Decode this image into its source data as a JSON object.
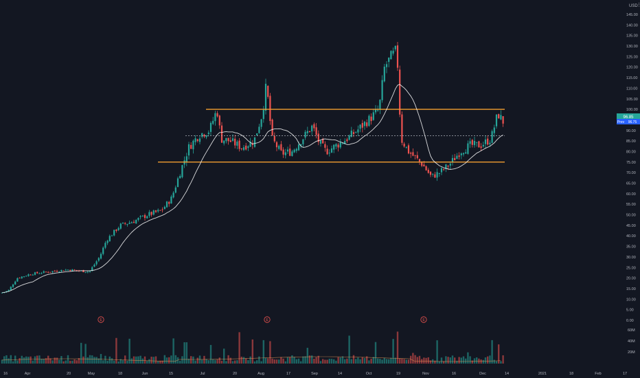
{
  "currency": "USD",
  "price_badges": {
    "current": "96.85",
    "prev_label": "Prev",
    "prev_value": "96.75"
  },
  "colors": {
    "background": "#131722",
    "up": "#26a69a",
    "down": "#ef5350",
    "axis_text": "#b2b5be",
    "level_line": "#f59f30",
    "ma_line": "#ffffff",
    "badge_blue": "#2962ff",
    "earnings_marker": "#ef5350"
  },
  "chart_data": {
    "type": "candlestick",
    "y_ticks": [
      "145.00",
      "140.00",
      "135.00",
      "130.00",
      "125.00",
      "120.00",
      "115.00",
      "110.00",
      "105.00",
      "100.00",
      "95.00",
      "90.00",
      "85.00",
      "80.00",
      "75.00",
      "70.00",
      "65.00",
      "60.00",
      "55.00",
      "50.00",
      "45.00",
      "40.00",
      "35.00",
      "30.00",
      "25.00",
      "20.00",
      "15.00",
      "10.00",
      "5.00",
      "0.00"
    ],
    "volume_ticks": [
      "60M",
      "40M",
      "20M"
    ],
    "x_ticks": [
      "16",
      "Apr",
      "20",
      "May",
      "18",
      "Jun",
      "15",
      "Jul",
      "20",
      "Aug",
      "17",
      "Sep",
      "14",
      "Oct",
      "19",
      "Nov",
      "16",
      "Dec",
      "14",
      "2021",
      "18",
      "Feb",
      "17"
    ],
    "ylim": [
      0,
      147
    ],
    "levels": {
      "resistance": 100,
      "support": 75,
      "midline": 87.5
    },
    "earnings_markers": [
      "E",
      "E",
      "E"
    ]
  }
}
